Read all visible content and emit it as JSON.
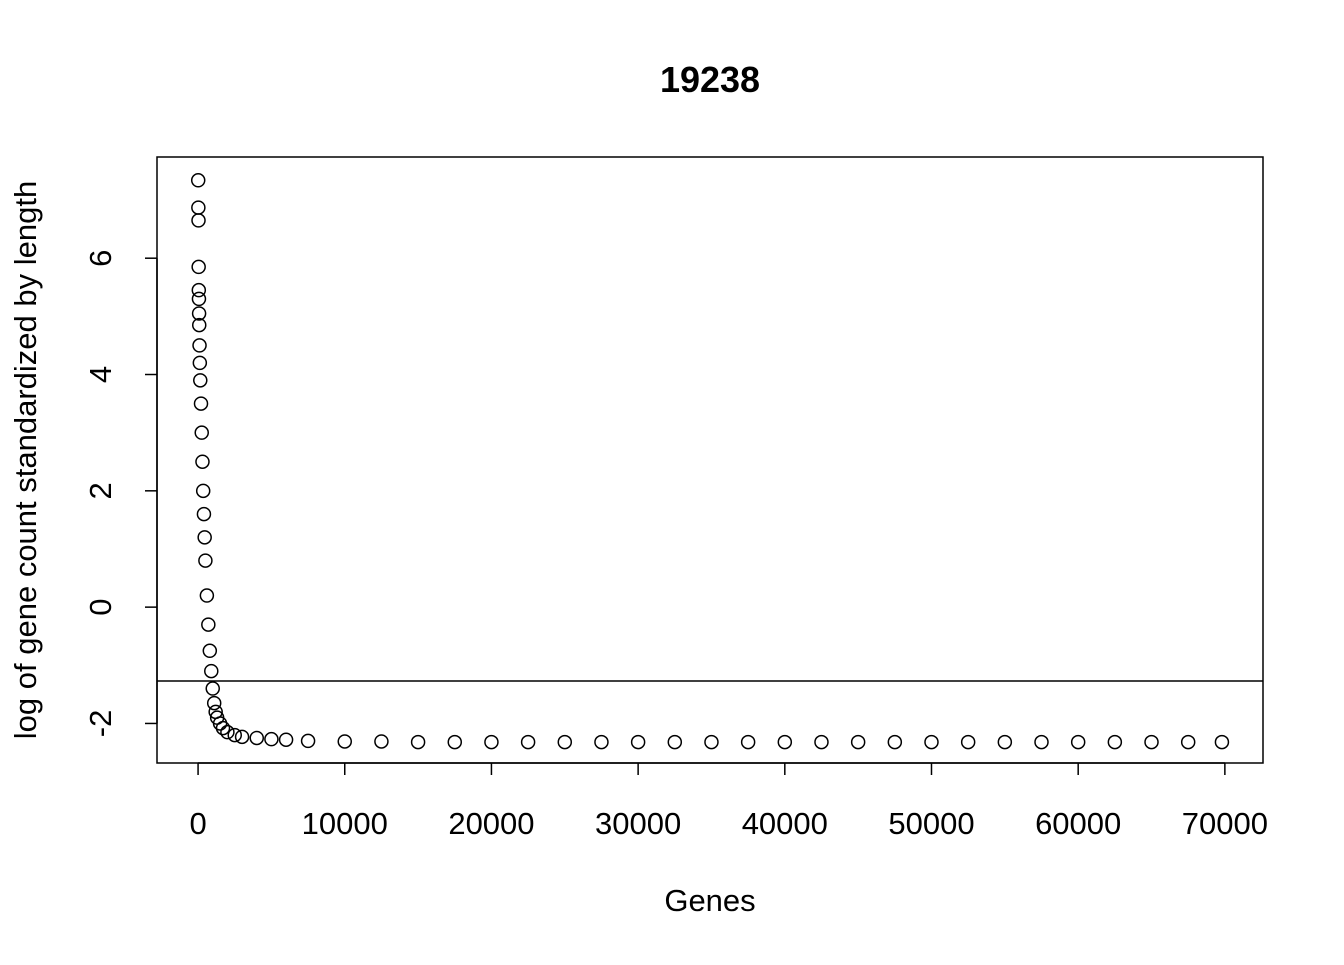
{
  "chart_data": {
    "type": "scatter",
    "title": "19238",
    "x_label": "Genes",
    "y_label": "log of gene count standardized by length",
    "series": [
      {
        "color": "#000000",
        "x": [
          10,
          20,
          30,
          40,
          50,
          60,
          70,
          80,
          100,
          120,
          150,
          200,
          250,
          300,
          350,
          400,
          450,
          500,
          600,
          700,
          800,
          900,
          1000,
          1100,
          1200,
          1300,
          1500,
          1700,
          2000,
          2500,
          3000,
          4000,
          5000,
          6000,
          7500,
          10000,
          12500,
          15000,
          17500,
          20000,
          22500,
          25000,
          27500,
          30000,
          32500,
          35000,
          37500,
          40000,
          42500,
          45000,
          47500,
          50000,
          52500,
          55000,
          57500,
          60000,
          62500,
          65000,
          67500,
          69800
        ],
        "values": [
          7.34,
          6.87,
          6.65,
          5.85,
          5.45,
          5.3,
          5.05,
          4.85,
          4.5,
          4.2,
          3.9,
          3.5,
          3.0,
          2.5,
          2.0,
          1.6,
          1.2,
          0.8,
          0.2,
          -0.3,
          -0.75,
          -1.1,
          -1.4,
          -1.65,
          -1.8,
          -1.9,
          -2.0,
          -2.08,
          -2.15,
          -2.2,
          -2.23,
          -2.25,
          -2.27,
          -2.28,
          -2.3,
          -2.31,
          -2.31,
          -2.32,
          -2.32,
          -2.32,
          -2.32,
          -2.32,
          -2.32,
          -2.32,
          -2.32,
          -2.32,
          -2.32,
          -2.32,
          -2.32,
          -2.32,
          -2.32,
          -2.32,
          -2.32,
          -2.32,
          -2.32,
          -2.32,
          -2.32,
          -2.32,
          -2.32,
          -2.32
        ]
      }
    ],
    "hline": -1.27,
    "xlim": [
      -2800,
      72600
    ],
    "ylim": [
      -2.68,
      7.74
    ],
    "xticks": [
      0,
      10000,
      20000,
      30000,
      40000,
      50000,
      60000,
      70000
    ],
    "yticks": [
      -2,
      0,
      2,
      4,
      6
    ]
  }
}
